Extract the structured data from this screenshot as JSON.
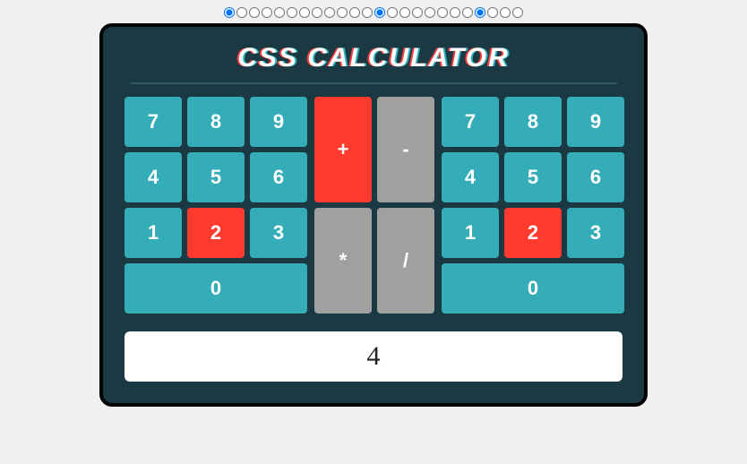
{
  "title": "CSS CALCULATOR",
  "radios": {
    "count": 24,
    "checked": [
      0,
      12,
      20
    ]
  },
  "colors": {
    "page_bg": "#f0f0f0",
    "calc_bg": "#1a3942",
    "calc_border": "#000000",
    "rule": "#2e5a65",
    "num_key": "#35adb8",
    "selected": "#ff3b30",
    "op_key": "#a0a0a0",
    "display_bg": "#ffffff",
    "text": "#ffffff",
    "title_shadow_left": "#ff3b3b",
    "title_shadow_right": "#30b5c0"
  },
  "left": {
    "keys": [
      "7",
      "8",
      "9",
      "4",
      "5",
      "6",
      "1",
      "2",
      "3"
    ],
    "selected_index": 7,
    "zero": "0"
  },
  "ops": {
    "keys": [
      "+",
      "-",
      "*",
      "/"
    ],
    "selected_index": 0
  },
  "right": {
    "keys": [
      "7",
      "8",
      "9",
      "4",
      "5",
      "6",
      "1",
      "2",
      "3"
    ],
    "selected_index": 7,
    "zero": "0"
  },
  "result": "4"
}
